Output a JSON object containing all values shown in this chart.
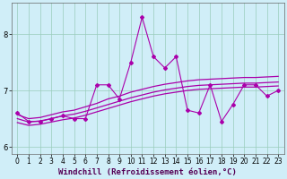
{
  "xlabel": "Windchill (Refroidissement éolien,°C)",
  "x": [
    0,
    1,
    2,
    3,
    4,
    5,
    6,
    7,
    8,
    9,
    10,
    11,
    12,
    13,
    14,
    15,
    16,
    17,
    18,
    19,
    20,
    21,
    22,
    23
  ],
  "y_data": [
    6.6,
    6.45,
    6.45,
    6.5,
    6.55,
    6.5,
    6.5,
    7.1,
    7.1,
    6.85,
    7.5,
    8.3,
    7.6,
    7.4,
    7.6,
    6.65,
    6.6,
    7.1,
    6.45,
    6.75,
    7.1,
    7.1,
    6.9,
    7.0
  ],
  "y_upper": [
    6.57,
    6.5,
    6.52,
    6.57,
    6.62,
    6.65,
    6.71,
    6.77,
    6.85,
    6.9,
    6.97,
    7.02,
    7.07,
    7.11,
    7.14,
    7.17,
    7.19,
    7.2,
    7.21,
    7.22,
    7.23,
    7.23,
    7.24,
    7.25
  ],
  "y_mid1": [
    6.5,
    6.44,
    6.46,
    6.5,
    6.55,
    6.58,
    6.63,
    6.69,
    6.75,
    6.81,
    6.87,
    6.92,
    6.97,
    7.01,
    7.04,
    7.07,
    7.09,
    7.1,
    7.11,
    7.12,
    7.13,
    7.13,
    7.14,
    7.15
  ],
  "y_lower": [
    6.43,
    6.38,
    6.4,
    6.44,
    6.48,
    6.51,
    6.56,
    6.62,
    6.68,
    6.74,
    6.8,
    6.85,
    6.9,
    6.94,
    6.97,
    7.0,
    7.02,
    7.03,
    7.04,
    7.05,
    7.06,
    7.06,
    7.07,
    7.08
  ],
  "line_color": "#aa00aa",
  "bg_color": "#d0eef8",
  "grid_color": "#99ccbb",
  "ylim": [
    5.88,
    8.55
  ],
  "yticks": [
    6,
    7,
    8
  ],
  "xlim": [
    -0.5,
    23.5
  ],
  "tick_fontsize": 5.5,
  "label_fontsize": 6.5
}
